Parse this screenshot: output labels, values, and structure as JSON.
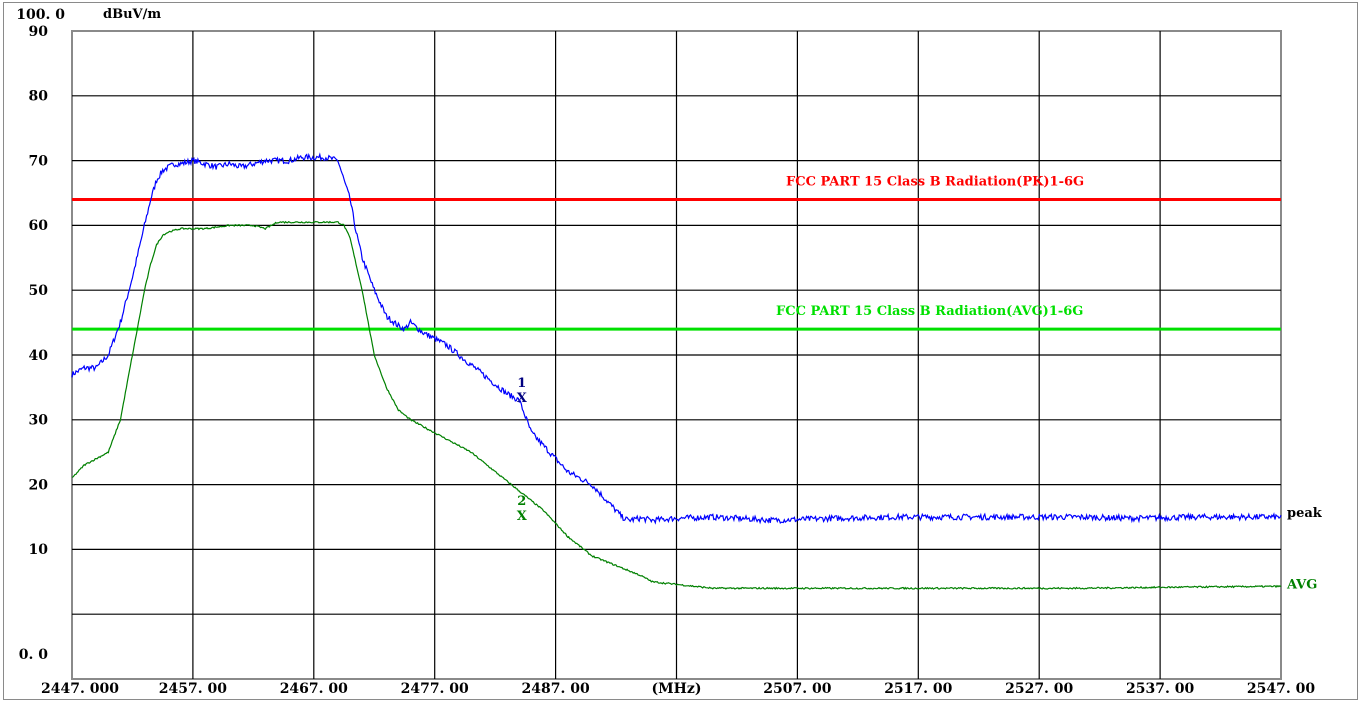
{
  "chart_data": {
    "type": "line",
    "y_unit": "dBuV/m",
    "x_unit": "(MHz)",
    "ylim": [
      0,
      100
    ],
    "xlim": [
      2447,
      2547
    ],
    "y_ticks": [
      {
        "v": 100,
        "label": "100. 0"
      },
      {
        "v": 90,
        "label": "90"
      },
      {
        "v": 80,
        "label": "80"
      },
      {
        "v": 70,
        "label": "70"
      },
      {
        "v": 60,
        "label": "60"
      },
      {
        "v": 50,
        "label": "50"
      },
      {
        "v": 40,
        "label": "40"
      },
      {
        "v": 30,
        "label": "30"
      },
      {
        "v": 20,
        "label": "20"
      },
      {
        "v": 10,
        "label": "10"
      },
      {
        "v": 0,
        "label": "0. 0"
      }
    ],
    "x_ticks": [
      {
        "v": 2447,
        "label": "2447. 000"
      },
      {
        "v": 2457,
        "label": "2457. 00"
      },
      {
        "v": 2467,
        "label": "2467. 00"
      },
      {
        "v": 2477,
        "label": "2477. 00"
      },
      {
        "v": 2487,
        "label": "2487. 00"
      },
      {
        "v": 2497,
        "label": "(MHz)"
      },
      {
        "v": 2507,
        "label": "2507. 00"
      },
      {
        "v": 2517,
        "label": "2517. 00"
      },
      {
        "v": 2527,
        "label": "2527. 00"
      },
      {
        "v": 2537,
        "label": "2537. 00"
      },
      {
        "v": 2547,
        "label": "2547. 00"
      }
    ],
    "grid": true,
    "limit_lines": [
      {
        "name": "FCC PART 15 Class B Radiation(PK)1-6G",
        "value": 74,
        "color": "#ff0000"
      },
      {
        "name": "FCC PART 15 Class B Radiation(AVG)1-6G",
        "value": 54,
        "color": "#00e000"
      }
    ],
    "series": [
      {
        "name": "peak",
        "color": "#0000ff",
        "label_color": "#000000",
        "noise": 0.45,
        "x": [
          2447.0,
          2448.0,
          2449.0,
          2450.0,
          2451.0,
          2452.0,
          2453.0,
          2453.5,
          2454.0,
          2454.5,
          2455.0,
          2455.5,
          2456.0,
          2457.0,
          2458.0,
          2459.0,
          2460.0,
          2461.0,
          2462.0,
          2463.0,
          2464.0,
          2465.0,
          2466.0,
          2467.0,
          2468.0,
          2469.0,
          2470.0,
          2470.5,
          2471.0,
          2472.0,
          2473.0,
          2474.0,
          2474.5,
          2475.0,
          2476.0,
          2477.0,
          2478.0,
          2479.0,
          2480.0,
          2481.0,
          2482.0,
          2483.0,
          2484.0,
          2485.0,
          2486.0,
          2487.0,
          2488.0,
          2489.0,
          2490.0,
          2491.0,
          2492.0,
          2492.5,
          2493.0,
          2494.0,
          2495.0,
          2497.0,
          2500.0,
          2505.0,
          2510.0,
          2515.0,
          2520.0,
          2525.0,
          2530.0,
          2535.0,
          2540.0,
          2545.0,
          2547.0
        ],
        "y": [
          47.0,
          48.0,
          48.0,
          50.0,
          55.0,
          62.0,
          70.0,
          74.0,
          77.0,
          78.5,
          79.0,
          79.5,
          79.5,
          80.0,
          79.5,
          79.0,
          79.5,
          79.0,
          79.5,
          80.0,
          80.0,
          80.0,
          80.5,
          80.5,
          80.5,
          80.0,
          74.0,
          69.0,
          65.0,
          60.0,
          56.0,
          54.5,
          54.0,
          55.0,
          53.5,
          52.5,
          51.5,
          50.0,
          48.5,
          47.0,
          45.5,
          44.0,
          43.0,
          38.0,
          36.0,
          34.0,
          32.0,
          31.0,
          30.0,
          28.0,
          26.0,
          25.0,
          24.5,
          24.8,
          24.5,
          24.8,
          25.0,
          24.5,
          24.8,
          25.0,
          25.0,
          25.0,
          25.0,
          24.8,
          25.0,
          25.0,
          25.0
        ]
      },
      {
        "name": "AVG",
        "color": "#008000",
        "label_color": "#008000",
        "noise": 0.12,
        "x": [
          2447.0,
          2448.0,
          2449.0,
          2450.0,
          2451.0,
          2452.0,
          2453.0,
          2453.5,
          2454.0,
          2454.5,
          2455.0,
          2456.0,
          2458.0,
          2460.0,
          2462.0,
          2463.0,
          2464.0,
          2466.0,
          2468.0,
          2469.0,
          2469.5,
          2470.0,
          2471.0,
          2472.0,
          2473.0,
          2474.0,
          2475.0,
          2476.0,
          2478.0,
          2480.0,
          2482.0,
          2484.0,
          2486.0,
          2488.0,
          2490.0,
          2492.0,
          2494.0,
          2495.0,
          2500.0,
          2510.0,
          2520.0,
          2530.0,
          2540.0,
          2547.0
        ],
        "y": [
          31.0,
          33.0,
          34.0,
          35.0,
          40.0,
          50.0,
          60.0,
          64.0,
          67.0,
          68.5,
          69.0,
          69.5,
          69.5,
          70.0,
          70.0,
          69.5,
          70.5,
          70.5,
          70.5,
          70.5,
          70.0,
          68.0,
          60.0,
          50.0,
          45.0,
          41.5,
          40.0,
          39.0,
          37.0,
          35.0,
          32.0,
          29.0,
          26.0,
          22.0,
          19.0,
          17.5,
          16.0,
          15.0,
          14.0,
          14.0,
          14.0,
          14.0,
          14.2,
          14.3
        ]
      }
    ],
    "markers": [
      {
        "label": "1",
        "symbol": "X",
        "x": 2484.2,
        "y": 43.5,
        "color": "#000080"
      },
      {
        "label": "2",
        "symbol": "X",
        "x": 2484.2,
        "y": 25.3,
        "color": "#008000"
      }
    ]
  }
}
